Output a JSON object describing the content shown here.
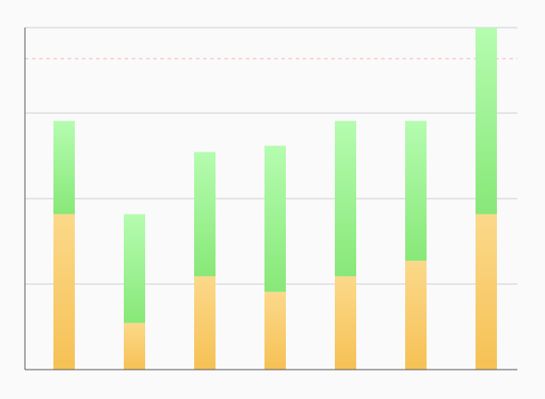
{
  "chart_data": {
    "type": "bar",
    "stacked": true,
    "categories": [
      "",
      "",
      "",
      "",
      "",
      "",
      ""
    ],
    "series": [
      {
        "values": [
          50,
          15,
          30,
          25,
          30,
          35,
          50
        ],
        "color": "#f6c155",
        "color_light": "#fbd98a"
      },
      {
        "values": [
          30,
          35,
          40,
          47,
          50,
          45,
          60
        ],
        "color": "#88e878",
        "color_light": "#b5fcb0"
      }
    ],
    "ylim": [
      0,
      110
    ],
    "gridlines_y": [
      27.5,
      55,
      82.5,
      110
    ],
    "reference_line": {
      "y": 100,
      "color": "#f5b5ad",
      "style": "dashed"
    },
    "title": "",
    "xlabel": "",
    "ylabel": "",
    "legend": "none"
  },
  "colors": {
    "background": "#fafafa",
    "grid": "#cfcfd6",
    "axis": "#555555"
  }
}
